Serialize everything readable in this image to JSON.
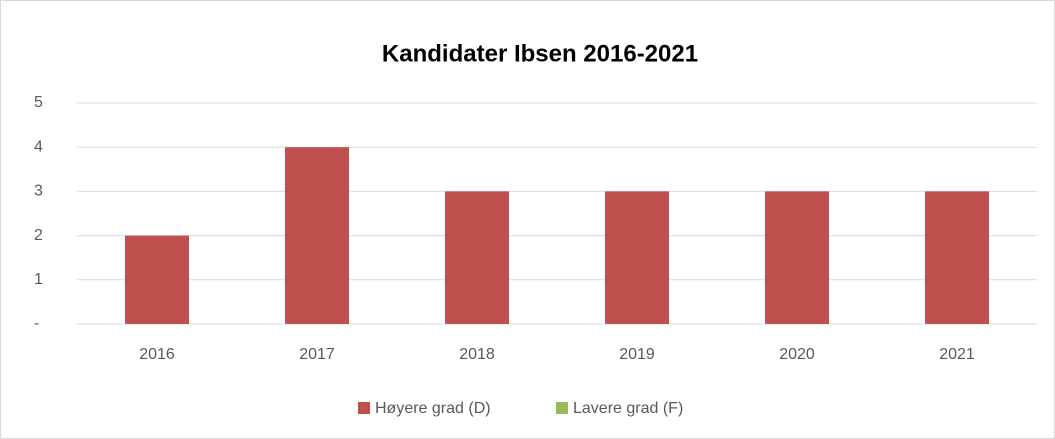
{
  "chart_data": {
    "type": "bar",
    "stacked": true,
    "title": "Kandidater Ibsen 2016-2021",
    "categories": [
      "2016",
      "2017",
      "2018",
      "2019",
      "2020",
      "2021"
    ],
    "series": [
      {
        "name": "Høyere grad (D)",
        "color": "#c0504d",
        "values": [
          2,
          4,
          3,
          3,
          3,
          3
        ]
      },
      {
        "name": "Lavere grad (F)",
        "color": "#9bbb59",
        "values": [
          0,
          0,
          0,
          0,
          0,
          0
        ]
      }
    ],
    "ylim": [
      0,
      5
    ],
    "yticks": [
      {
        "value": 0,
        "label": "-"
      },
      1,
      2,
      3,
      4,
      5
    ],
    "grid": true,
    "legend": "bottom"
  }
}
